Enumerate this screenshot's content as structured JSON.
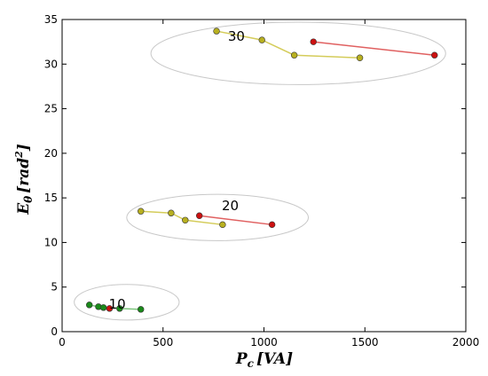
{
  "chart_data": {
    "type": "line",
    "title": "",
    "xlabel": "P",
    "xlabel_sub": "c",
    "xlabel_unit": "[VA]",
    "ylabel": "E",
    "ylabel_sub": "θ",
    "ylabel_unit": "[rad",
    "ylabel_sup": "2",
    "ylabel_close": "]",
    "xlim": [
      0,
      2000
    ],
    "ylim": [
      0,
      35
    ],
    "xticks": [
      "0",
      "500",
      "1000",
      "1500",
      "2000"
    ],
    "yticks": [
      "0",
      "5",
      "10",
      "15",
      "20",
      "25",
      "30",
      "35"
    ],
    "grid": false,
    "groups": [
      {
        "label": "10",
        "center": [
          320,
          3.3
        ],
        "rx": 260,
        "ry": 2.0
      },
      {
        "label": "20",
        "center": [
          770,
          12.8
        ],
        "rx": 450,
        "ry": 2.6
      },
      {
        "label": "30",
        "center": [
          1170,
          31.2
        ],
        "rx": 730,
        "ry": 3.5
      }
    ],
    "series": [
      {
        "group": "10",
        "color": "#7cc47c",
        "marker": "#1a8a1a",
        "points": [
          [
            135,
            3.0
          ],
          [
            180,
            2.8
          ],
          [
            205,
            2.7
          ],
          [
            285,
            2.6
          ],
          [
            390,
            2.5
          ]
        ]
      },
      {
        "group": "10",
        "color": "#e06060",
        "marker": "#cc1111",
        "points": [
          [
            235,
            2.6
          ]
        ]
      },
      {
        "group": "20",
        "color": "#d4cc5a",
        "marker": "#b8b020",
        "points": [
          [
            390,
            13.5
          ],
          [
            540,
            13.3
          ],
          [
            610,
            12.5
          ],
          [
            795,
            12.0
          ]
        ]
      },
      {
        "group": "20",
        "color": "#e06060",
        "marker": "#cc1111",
        "points": [
          [
            680,
            13.0
          ],
          [
            1040,
            12.0
          ]
        ]
      },
      {
        "group": "30",
        "color": "#d4cc5a",
        "marker": "#b8b020",
        "points": [
          [
            765,
            33.7
          ],
          [
            990,
            32.7
          ],
          [
            1150,
            31.0
          ],
          [
            1475,
            30.7
          ]
        ]
      },
      {
        "group": "30",
        "color": "#e06060",
        "marker": "#cc1111",
        "points": [
          [
            1245,
            32.5
          ],
          [
            1845,
            31.0
          ]
        ]
      }
    ]
  }
}
